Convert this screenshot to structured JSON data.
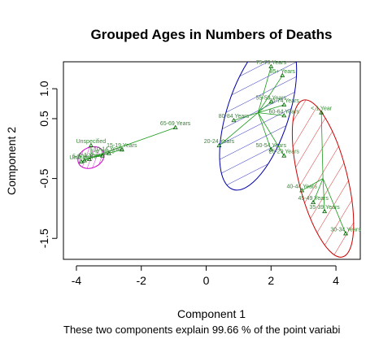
{
  "chart_data": {
    "type": "scatter",
    "title": "Grouped Ages in Numbers of Deaths",
    "xlabel": "Component 1",
    "ylabel": "Component 2",
    "caption": "These two components explain 99.66 % of the point variabi",
    "xlim": [
      -4.4,
      4.75
    ],
    "ylim": [
      -1.85,
      1.45
    ],
    "xticks": [
      -4,
      -2,
      0,
      2,
      4
    ],
    "yticks": [
      1.0,
      0.5,
      -0.5,
      -1.5
    ],
    "ytick_labels": [
      "1.0",
      "0.5",
      "-0.5",
      "-1.5"
    ],
    "colors": {
      "cluster1": "#cc00cc",
      "cluster2": "#0000aa",
      "cluster3": "#cc0000",
      "points": "#006400",
      "labels": "#2e8b2e"
    },
    "points": [
      {
        "label": "Unspecified",
        "x": -3.55,
        "y": 0.05,
        "cluster": 1
      },
      {
        "label": "10-14 Years",
        "x": -3.0,
        "y": -0.08,
        "cluster": 1
      },
      {
        "label": "1-4 Years",
        "x": -3.2,
        "y": -0.12,
        "cluster": 1
      },
      {
        "label": "0-1 Year",
        "x": -3.6,
        "y": -0.18,
        "cluster": 1
      },
      {
        "label": "5-9 Years",
        "x": -3.75,
        "y": -0.2,
        "cluster": 1
      },
      {
        "label": "Unknown",
        "x": -3.85,
        "y": -0.22,
        "cluster": 1
      },
      {
        "label": "15-19 Years",
        "x": -2.6,
        "y": -0.02,
        "cluster": 1
      },
      {
        "label": "65-69 Years",
        "x": -0.95,
        "y": 0.35,
        "cluster": 1
      },
      {
        "label": "75-79 Years",
        "x": 2.0,
        "y": 1.37,
        "cluster": 2
      },
      {
        "label": "85+ Years",
        "x": 2.35,
        "y": 1.22,
        "cluster": 2
      },
      {
        "label": "55-59 Years",
        "x": 2.0,
        "y": 0.78,
        "cluster": 2
      },
      {
        "label": "70-74 Years",
        "x": 2.4,
        "y": 0.73,
        "cluster": 2
      },
      {
        "label": "60-64 Years",
        "x": 2.4,
        "y": 0.55,
        "cluster": 2
      },
      {
        "label": "80-84 Years",
        "x": 0.85,
        "y": 0.47,
        "cluster": 2
      },
      {
        "label": "20-24 Years",
        "x": 0.4,
        "y": 0.05,
        "cluster": 2
      },
      {
        "label": "50-54 Years",
        "x": 2.0,
        "y": -0.02,
        "cluster": 2
      },
      {
        "label": "25-29 Years",
        "x": 2.4,
        "y": -0.12,
        "cluster": 2
      },
      {
        "label": "< 1 Year",
        "x": 3.55,
        "y": 0.6,
        "cluster": 3
      },
      {
        "label": "40-44 Years",
        "x": 2.95,
        "y": -0.7,
        "cluster": 3
      },
      {
        "label": "45-49 Years",
        "x": 3.3,
        "y": -0.9,
        "cluster": 3
      },
      {
        "label": "35-39 Years",
        "x": 3.65,
        "y": -1.05,
        "cluster": 3
      },
      {
        "label": "30-34 Years",
        "x": 4.3,
        "y": -1.42,
        "cluster": 3
      }
    ],
    "clusters": [
      {
        "id": 1,
        "cx": -3.55,
        "cy": -0.15,
        "rx": 0.42,
        "ry": 0.17,
        "angle": -25,
        "color": "#cc00cc"
      },
      {
        "id": 2,
        "cx": 1.6,
        "cy": 0.6,
        "rx": 0.95,
        "ry": 1.35,
        "angle": 18,
        "color": "#0000aa"
      },
      {
        "id": 3,
        "cx": 3.6,
        "cy": -0.5,
        "rx": 0.75,
        "ry": 1.35,
        "angle": -14,
        "color": "#cc0000"
      }
    ],
    "grid": false,
    "legend": "none"
  }
}
